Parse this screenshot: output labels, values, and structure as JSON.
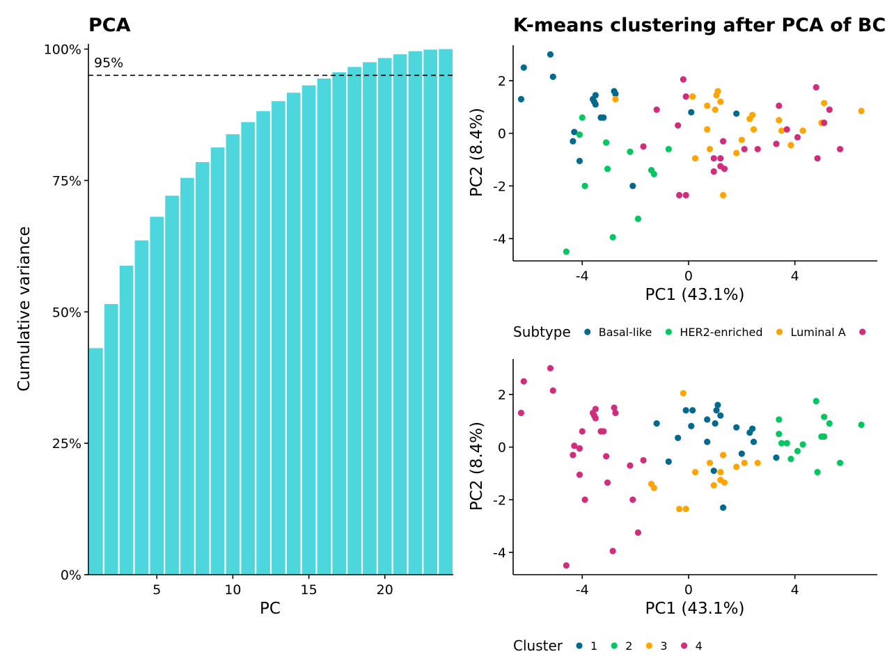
{
  "chart_data": [
    {
      "type": "bar",
      "title": "PCA",
      "xlabel": "PC",
      "ylabel": "Cumulative variance",
      "x_ticks": [
        "5",
        "10",
        "15",
        "20"
      ],
      "y_ticks": [
        "0%",
        "25%",
        "50%",
        "75%",
        "100%"
      ],
      "xlim": [
        0.5,
        24.5
      ],
      "ylim": [
        0,
        1.01
      ],
      "bar_color": "#4DD6DC",
      "threshold": {
        "value": 0.95,
        "label": "95%"
      },
      "categories": [
        1,
        2,
        3,
        4,
        5,
        6,
        7,
        8,
        9,
        10,
        11,
        12,
        13,
        14,
        15,
        16,
        17,
        18,
        19,
        20,
        21,
        22,
        23,
        24
      ],
      "values": [
        0.431,
        0.515,
        0.588,
        0.636,
        0.681,
        0.721,
        0.755,
        0.785,
        0.813,
        0.838,
        0.861,
        0.882,
        0.901,
        0.917,
        0.931,
        0.944,
        0.956,
        0.966,
        0.975,
        0.983,
        0.99,
        0.996,
        0.999,
        1.0
      ]
    },
    {
      "type": "scatter",
      "title": "K-means clustering after PCA of BC",
      "xlabel": "PC1 (43.1%)",
      "ylabel": "PC2 (8.4%)",
      "x_ticks": [
        "-4",
        "0",
        "4"
      ],
      "y_ticks": [
        "-4",
        "-2",
        "0",
        "2"
      ],
      "xlim": [
        -6.6,
        7.1
      ],
      "ylim": [
        -4.85,
        3.35
      ],
      "legend": {
        "title": "Subtype",
        "position": "bottom",
        "entries": [
          {
            "label": "Basal-like",
            "color": "#006A8E"
          },
          {
            "label": "HER2-enriched",
            "color": "#00C760"
          },
          {
            "label": "Luminal A",
            "color": "#FFA400"
          },
          {
            "label": "",
            "color": "#D22D7C"
          }
        ]
      },
      "points": [
        {
          "x": -6.2,
          "y": 2.5,
          "g": 0
        },
        {
          "x": -6.3,
          "y": 1.3,
          "g": 0
        },
        {
          "x": -5.2,
          "y": 3.0,
          "g": 0
        },
        {
          "x": -5.1,
          "y": 2.15,
          "g": 0
        },
        {
          "x": -3.5,
          "y": 1.45,
          "g": 0
        },
        {
          "x": -3.6,
          "y": 1.3,
          "g": 0
        },
        {
          "x": -3.55,
          "y": 1.2,
          "g": 0
        },
        {
          "x": -3.5,
          "y": 1.1,
          "g": 0
        },
        {
          "x": -3.3,
          "y": 0.6,
          "g": 0
        },
        {
          "x": -3.2,
          "y": 0.6,
          "g": 0
        },
        {
          "x": -2.8,
          "y": 1.6,
          "g": 0
        },
        {
          "x": -2.75,
          "y": 1.5,
          "g": 0
        },
        {
          "x": -4.3,
          "y": 0.05,
          "g": 0
        },
        {
          "x": -4.35,
          "y": -0.3,
          "g": 0
        },
        {
          "x": -4.1,
          "y": -1.05,
          "g": 0
        },
        {
          "x": -2.1,
          "y": -2.0,
          "g": 0
        },
        {
          "x": 0.1,
          "y": 0.8,
          "g": 0
        },
        {
          "x": 1.8,
          "y": 0.75,
          "g": 0
        },
        {
          "x": -4.0,
          "y": 0.6,
          "g": 1
        },
        {
          "x": -4.1,
          "y": -0.05,
          "g": 1
        },
        {
          "x": -3.1,
          "y": -0.35,
          "g": 1
        },
        {
          "x": -2.2,
          "y": -0.7,
          "g": 1
        },
        {
          "x": -0.75,
          "y": -0.6,
          "g": 1
        },
        {
          "x": -1.4,
          "y": -1.4,
          "g": 1
        },
        {
          "x": -1.3,
          "y": -1.55,
          "g": 1
        },
        {
          "x": -3.05,
          "y": -1.35,
          "g": 1
        },
        {
          "x": -3.9,
          "y": -2.0,
          "g": 1
        },
        {
          "x": -1.9,
          "y": -3.25,
          "g": 1
        },
        {
          "x": -2.85,
          "y": -3.95,
          "g": 1
        },
        {
          "x": -4.6,
          "y": -4.5,
          "g": 1
        },
        {
          "x": 1.1,
          "y": 1.6,
          "g": 2
        },
        {
          "x": 1.05,
          "y": 1.45,
          "g": 2
        },
        {
          "x": 0.7,
          "y": 1.05,
          "g": 2
        },
        {
          "x": 1.0,
          "y": 0.9,
          "g": 2
        },
        {
          "x": 1.2,
          "y": 1.2,
          "g": 2
        },
        {
          "x": 0.15,
          "y": 1.4,
          "g": 2
        },
        {
          "x": -2.75,
          "y": 1.3,
          "g": 2
        },
        {
          "x": 2.3,
          "y": 0.55,
          "g": 2
        },
        {
          "x": 2.4,
          "y": 0.7,
          "g": 2
        },
        {
          "x": 2.45,
          "y": 0.15,
          "g": 2
        },
        {
          "x": 0.7,
          "y": 0.15,
          "g": 2
        },
        {
          "x": 2.0,
          "y": -0.25,
          "g": 2
        },
        {
          "x": 0.8,
          "y": -0.6,
          "g": 2
        },
        {
          "x": 0.25,
          "y": -0.95,
          "g": 2
        },
        {
          "x": 1.8,
          "y": -0.75,
          "g": 2
        },
        {
          "x": 1.3,
          "y": -2.35,
          "g": 2
        },
        {
          "x": 3.4,
          "y": 0.5,
          "g": 2
        },
        {
          "x": 3.5,
          "y": 0.1,
          "g": 2
        },
        {
          "x": 3.85,
          "y": -0.45,
          "g": 2
        },
        {
          "x": 4.3,
          "y": 0.1,
          "g": 2
        },
        {
          "x": 5.0,
          "y": 0.4,
          "g": 2
        },
        {
          "x": 5.1,
          "y": 1.15,
          "g": 2
        },
        {
          "x": 6.5,
          "y": 0.85,
          "g": 2
        },
        {
          "x": -0.2,
          "y": 2.05,
          "g": 3
        },
        {
          "x": -0.1,
          "y": 1.4,
          "g": 3
        },
        {
          "x": -1.2,
          "y": 0.9,
          "g": 3
        },
        {
          "x": -0.4,
          "y": 0.3,
          "g": 3
        },
        {
          "x": -1.7,
          "y": -0.5,
          "g": 3
        },
        {
          "x": -0.35,
          "y": -2.35,
          "g": 3
        },
        {
          "x": -0.1,
          "y": -2.35,
          "g": 3
        },
        {
          "x": 0.95,
          "y": -0.95,
          "g": 3
        },
        {
          "x": 1.2,
          "y": -0.95,
          "g": 3
        },
        {
          "x": 1.3,
          "y": -0.3,
          "g": 3
        },
        {
          "x": 2.1,
          "y": -0.6,
          "g": 3
        },
        {
          "x": 2.6,
          "y": -0.6,
          "g": 3
        },
        {
          "x": 0.95,
          "y": -1.45,
          "g": 3
        },
        {
          "x": 1.2,
          "y": -1.25,
          "g": 3
        },
        {
          "x": 1.35,
          "y": -1.35,
          "g": 3
        },
        {
          "x": 3.3,
          "y": -0.4,
          "g": 3
        },
        {
          "x": 3.4,
          "y": 1.05,
          "g": 3
        },
        {
          "x": 3.7,
          "y": 0.15,
          "g": 3
        },
        {
          "x": 4.1,
          "y": -0.15,
          "g": 3
        },
        {
          "x": 4.8,
          "y": 1.75,
          "g": 3
        },
        {
          "x": 5.1,
          "y": 0.4,
          "g": 3
        },
        {
          "x": 5.3,
          "y": 0.9,
          "g": 3
        },
        {
          "x": 4.85,
          "y": -0.95,
          "g": 3
        },
        {
          "x": 5.7,
          "y": -0.6,
          "g": 3
        }
      ]
    },
    {
      "type": "scatter",
      "title": "",
      "xlabel": "PC1 (43.1%)",
      "ylabel": "PC2 (8.4%)",
      "x_ticks": [
        "-4",
        "0",
        "4"
      ],
      "y_ticks": [
        "-4",
        "-2",
        "0",
        "2"
      ],
      "xlim": [
        -6.6,
        7.1
      ],
      "ylim": [
        -4.85,
        3.35
      ],
      "legend": {
        "title": "Cluster",
        "position": "bottom",
        "entries": [
          {
            "label": "1",
            "color": "#006A8E"
          },
          {
            "label": "2",
            "color": "#00C760"
          },
          {
            "label": "3",
            "color": "#FFA400"
          },
          {
            "label": "4",
            "color": "#D22D7C"
          }
        ]
      },
      "points": [
        {
          "x": -6.2,
          "y": 2.5,
          "g": 3
        },
        {
          "x": -6.3,
          "y": 1.3,
          "g": 3
        },
        {
          "x": -5.2,
          "y": 3.0,
          "g": 3
        },
        {
          "x": -5.1,
          "y": 2.15,
          "g": 3
        },
        {
          "x": -3.5,
          "y": 1.45,
          "g": 3
        },
        {
          "x": -3.6,
          "y": 1.3,
          "g": 3
        },
        {
          "x": -3.55,
          "y": 1.2,
          "g": 3
        },
        {
          "x": -3.5,
          "y": 1.1,
          "g": 3
        },
        {
          "x": -3.3,
          "y": 0.6,
          "g": 3
        },
        {
          "x": -3.2,
          "y": 0.6,
          "g": 3
        },
        {
          "x": -2.8,
          "y": 1.5,
          "g": 3
        },
        {
          "x": -2.75,
          "y": 1.3,
          "g": 3
        },
        {
          "x": -4.0,
          "y": 0.6,
          "g": 3
        },
        {
          "x": -4.3,
          "y": 0.05,
          "g": 3
        },
        {
          "x": -4.1,
          "y": -0.05,
          "g": 3
        },
        {
          "x": -4.35,
          "y": -0.3,
          "g": 3
        },
        {
          "x": -4.1,
          "y": -1.05,
          "g": 3
        },
        {
          "x": -3.1,
          "y": -0.35,
          "g": 3
        },
        {
          "x": -2.2,
          "y": -0.7,
          "g": 3
        },
        {
          "x": -1.7,
          "y": -0.5,
          "g": 3
        },
        {
          "x": -3.05,
          "y": -1.35,
          "g": 3
        },
        {
          "x": -3.9,
          "y": -2.0,
          "g": 3
        },
        {
          "x": -2.1,
          "y": -2.0,
          "g": 3
        },
        {
          "x": -1.9,
          "y": -3.25,
          "g": 3
        },
        {
          "x": -2.85,
          "y": -3.95,
          "g": 3
        },
        {
          "x": -4.6,
          "y": -4.5,
          "g": 3
        },
        {
          "x": 1.1,
          "y": 1.6,
          "g": 0
        },
        {
          "x": 1.05,
          "y": 1.4,
          "g": 0
        },
        {
          "x": 1.2,
          "y": 1.2,
          "g": 0
        },
        {
          "x": 0.7,
          "y": 1.05,
          "g": 0
        },
        {
          "x": 1.0,
          "y": 0.9,
          "g": 0
        },
        {
          "x": -0.1,
          "y": 1.4,
          "g": 0
        },
        {
          "x": 0.15,
          "y": 1.4,
          "g": 0
        },
        {
          "x": -1.2,
          "y": 0.9,
          "g": 0
        },
        {
          "x": 0.1,
          "y": 0.8,
          "g": 0
        },
        {
          "x": -0.4,
          "y": 0.35,
          "g": 0
        },
        {
          "x": 0.7,
          "y": 0.2,
          "g": 0
        },
        {
          "x": 1.8,
          "y": 0.75,
          "g": 0
        },
        {
          "x": 2.3,
          "y": 0.55,
          "g": 0
        },
        {
          "x": 2.4,
          "y": 0.7,
          "g": 0
        },
        {
          "x": 2.45,
          "y": 0.2,
          "g": 0
        },
        {
          "x": 2.0,
          "y": -0.25,
          "g": 0
        },
        {
          "x": -0.75,
          "y": -0.55,
          "g": 0
        },
        {
          "x": 3.3,
          "y": -0.4,
          "g": 0
        },
        {
          "x": 0.95,
          "y": -0.9,
          "g": 0
        },
        {
          "x": 1.3,
          "y": -2.3,
          "g": 0
        },
        {
          "x": 4.8,
          "y": 1.75,
          "g": 1
        },
        {
          "x": 5.1,
          "y": 1.15,
          "g": 1
        },
        {
          "x": 3.4,
          "y": 1.05,
          "g": 1
        },
        {
          "x": 5.3,
          "y": 0.9,
          "g": 1
        },
        {
          "x": 6.5,
          "y": 0.85,
          "g": 1
        },
        {
          "x": 3.4,
          "y": 0.5,
          "g": 1
        },
        {
          "x": 5.0,
          "y": 0.4,
          "g": 1
        },
        {
          "x": 5.1,
          "y": 0.4,
          "g": 1
        },
        {
          "x": 3.5,
          "y": 0.15,
          "g": 1
        },
        {
          "x": 3.7,
          "y": 0.15,
          "g": 1
        },
        {
          "x": 4.3,
          "y": 0.1,
          "g": 1
        },
        {
          "x": 4.1,
          "y": -0.15,
          "g": 1
        },
        {
          "x": 3.85,
          "y": -0.45,
          "g": 1
        },
        {
          "x": 5.7,
          "y": -0.6,
          "g": 1
        },
        {
          "x": 4.85,
          "y": -0.95,
          "g": 1
        },
        {
          "x": -0.2,
          "y": 2.05,
          "g": 2
        },
        {
          "x": 1.3,
          "y": -0.3,
          "g": 2
        },
        {
          "x": 0.8,
          "y": -0.6,
          "g": 2
        },
        {
          "x": 2.1,
          "y": -0.6,
          "g": 2
        },
        {
          "x": 2.6,
          "y": -0.6,
          "g": 2
        },
        {
          "x": 1.8,
          "y": -0.75,
          "g": 2
        },
        {
          "x": 0.25,
          "y": -0.95,
          "g": 2
        },
        {
          "x": 1.2,
          "y": -0.95,
          "g": 2
        },
        {
          "x": 1.2,
          "y": -1.25,
          "g": 2
        },
        {
          "x": 1.35,
          "y": -1.35,
          "g": 2
        },
        {
          "x": 0.95,
          "y": -1.45,
          "g": 2
        },
        {
          "x": -1.4,
          "y": -1.4,
          "g": 2
        },
        {
          "x": -1.3,
          "y": -1.55,
          "g": 2
        },
        {
          "x": -0.35,
          "y": -2.35,
          "g": 2
        },
        {
          "x": -0.1,
          "y": -2.35,
          "g": 2
        }
      ]
    }
  ]
}
